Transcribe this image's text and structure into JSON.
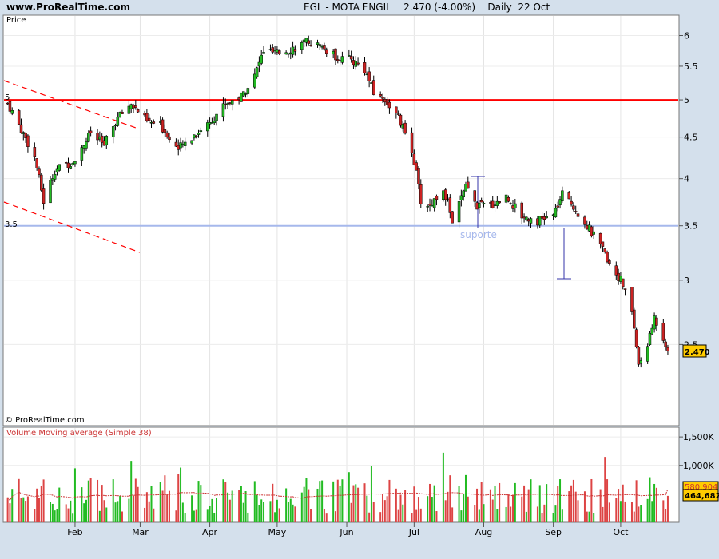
{
  "header": {
    "site": "www.ProRealTime.com",
    "instrument": "EGL - MOTA ENGIL",
    "price_change": "2.470 (-4.00%)",
    "period": "Daily",
    "date": "22 Oct"
  },
  "price_panel": {
    "label": "Price",
    "copyright": "© ProRealTime.com",
    "last_price": "2.470",
    "support_label": "suporte",
    "line_5_label": "5",
    "line_35_label": "3.5",
    "colors": {
      "up": "#22bb22",
      "down": "#cc2222",
      "resistance": "#ff0000",
      "support": "#a6b8ec",
      "annotation": "#3333aa"
    }
  },
  "volume_panel": {
    "label": "Volume Moving average (Simple 38)",
    "last_ma": "580.904",
    "last_volume": "464,682",
    "colors": {
      "up": "#22bb22",
      "down": "#dd4444",
      "ma": "#cc3333"
    }
  },
  "chart_data": [
    {
      "type": "candlestick",
      "x_axis_ticks": [
        "Feb",
        "Mar",
        "Apr",
        "May",
        "Jun",
        "Jul",
        "Aug",
        "Sep",
        "Oct"
      ],
      "y_axis_ticks": [
        "6",
        "5.5",
        "5",
        "4.5",
        "4",
        "3.5",
        "3",
        "2.5"
      ],
      "ylim": [
        2.0,
        6.2
      ],
      "y_scale": "log",
      "horizontal_lines": [
        5.0,
        3.5
      ],
      "close_path": [
        [
          "2008-01-02",
          4.95
        ],
        [
          "2008-01-08",
          4.6
        ],
        [
          "2008-01-14",
          4.25
        ],
        [
          "2008-01-18",
          3.75
        ],
        [
          "2008-01-23",
          4.1
        ],
        [
          "2008-01-31",
          4.2
        ],
        [
          "2008-02-08",
          4.55
        ],
        [
          "2008-02-14",
          4.4
        ],
        [
          "2008-02-20",
          4.75
        ],
        [
          "2008-02-26",
          4.95
        ],
        [
          "2008-03-04",
          4.7
        ],
        [
          "2008-03-10",
          4.65
        ],
        [
          "2008-03-18",
          4.35
        ],
        [
          "2008-03-24",
          4.5
        ],
        [
          "2008-04-01",
          4.7
        ],
        [
          "2008-04-08",
          4.95
        ],
        [
          "2008-04-15",
          5.05
        ],
        [
          "2008-04-21",
          5.35
        ],
        [
          "2008-04-25",
          5.75
        ],
        [
          "2008-05-01",
          5.7
        ],
        [
          "2008-05-09",
          5.8
        ],
        [
          "2008-05-15",
          5.9
        ],
        [
          "2008-05-21",
          5.8
        ],
        [
          "2008-05-27",
          5.65
        ],
        [
          "2008-06-03",
          5.6
        ],
        [
          "2008-06-09",
          5.45
        ],
        [
          "2008-06-13",
          5.1
        ],
        [
          "2008-06-18",
          5.0
        ],
        [
          "2008-06-24",
          4.75
        ],
        [
          "2008-06-30",
          4.35
        ],
        [
          "2008-07-04",
          3.75
        ],
        [
          "2008-07-08",
          3.7
        ],
        [
          "2008-07-14",
          3.9
        ],
        [
          "2008-07-18",
          3.55
        ],
        [
          "2008-07-24",
          3.9
        ],
        [
          "2008-07-29",
          3.7
        ],
        [
          "2008-08-05",
          3.72
        ],
        [
          "2008-08-11",
          3.8
        ],
        [
          "2008-08-18",
          3.6
        ],
        [
          "2008-08-25",
          3.55
        ],
        [
          "2008-09-01",
          3.6
        ],
        [
          "2008-09-05",
          3.82
        ],
        [
          "2008-09-10",
          3.7
        ],
        [
          "2008-09-16",
          3.5
        ],
        [
          "2008-09-22",
          3.3
        ],
        [
          "2008-09-26",
          3.15
        ],
        [
          "2008-10-01",
          3.0
        ],
        [
          "2008-10-06",
          2.75
        ],
        [
          "2008-10-09",
          2.35
        ],
        [
          "2008-10-14",
          2.55
        ],
        [
          "2008-10-16",
          2.7
        ],
        [
          "2008-10-22",
          2.47
        ]
      ]
    },
    {
      "type": "bar",
      "name": "Volume",
      "y_axis_ticks": [
        "1,500K",
        "1,000K"
      ],
      "ylim": [
        0,
        1600000
      ],
      "moving_average_window": 38,
      "last_value": 464682,
      "last_ma": 580904
    }
  ]
}
